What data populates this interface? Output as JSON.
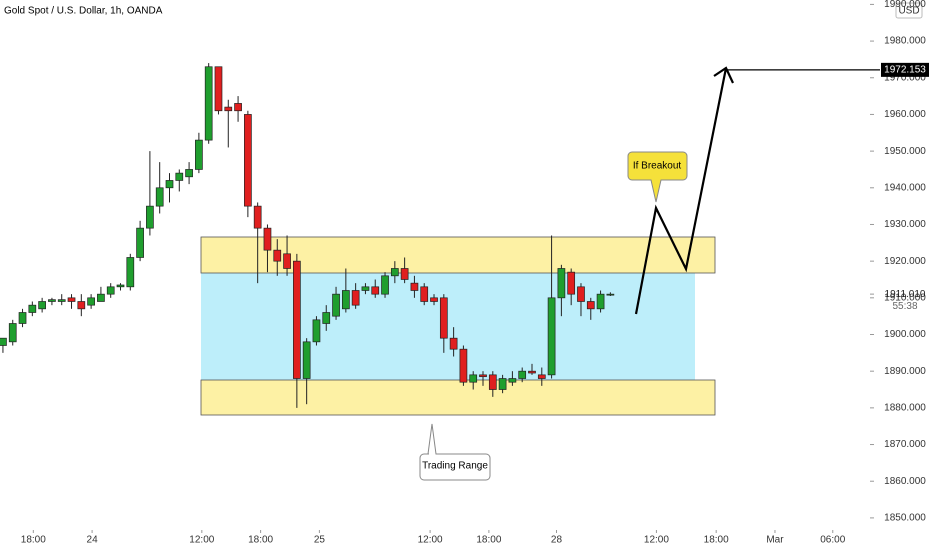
{
  "chart_data": {
    "type": "candlestick",
    "title": "Gold Spot / U.S. Dollar, 1h, OANDA",
    "currency": "USD",
    "up_color": "#1f9e2e",
    "down_color": "#e01f1f",
    "open": [
      1897,
      1898,
      1903,
      1906,
      1907,
      1909,
      1909,
      1910,
      1909,
      1908,
      1909,
      1911,
      1913,
      1913,
      1921,
      1929,
      1935,
      1940,
      1942,
      1943,
      1945,
      1953,
      1973,
      1962,
      1963,
      1960,
      1935,
      1929,
      1923,
      1922,
      1920,
      1888,
      1898,
      1903,
      1905,
      1907,
      1912,
      1912,
      1913,
      1911,
      1916,
      1918,
      1914,
      1913,
      1910,
      1910,
      1899,
      1896,
      1887,
      1889,
      1889,
      1885,
      1887,
      1888,
      1890,
      1889,
      1889,
      1910,
      1917,
      1913,
      1909,
      1907,
      1911
    ],
    "high": [
      1899,
      1904,
      1907,
      1909,
      1910,
      1910,
      1911,
      1911,
      1911,
      1911,
      1913,
      1914,
      1914,
      1922,
      1931,
      1950,
      1947,
      1944,
      1945,
      1947,
      1955,
      1974,
      1973,
      1964,
      1965,
      1961,
      1936,
      1930,
      1926,
      1927,
      1922,
      1899,
      1905,
      1908,
      1913,
      1918,
      1914,
      1914,
      1915,
      1917,
      1920,
      1921,
      1916,
      1914,
      1911,
      1911,
      1902,
      1897,
      1890,
      1890,
      1890,
      1889,
      1890,
      1891,
      1892,
      1891,
      1927,
      1919,
      1918,
      1914,
      1910,
      1912,
      1911.5
    ],
    "low": [
      1895,
      1897,
      1902,
      1905,
      1906,
      1908,
      1908,
      1907,
      1905,
      1907,
      1909,
      1910,
      1912,
      1912,
      1920,
      1927,
      1933,
      1936,
      1939,
      1941,
      1944,
      1952,
      1960,
      1951,
      1958,
      1932,
      1914,
      1917,
      1916,
      1916,
      1880,
      1881,
      1897,
      1901,
      1904,
      1906,
      1907,
      1911,
      1910,
      1910,
      1914,
      1914,
      1910,
      1908,
      1908,
      1895,
      1894,
      1886,
      1885,
      1886,
      1883,
      1884,
      1886,
      1887,
      1889,
      1886,
      1888,
      1905,
      1908,
      1905,
      1904,
      1906,
      1910.5
    ],
    "close": [
      1899,
      1903,
      1906,
      1908,
      1909,
      1909.5,
      1909.5,
      1909,
      1907,
      1910,
      1911,
      1913,
      1913.5,
      1921,
      1929,
      1935,
      1940,
      1942,
      1944,
      1945,
      1953,
      1973,
      1961,
      1961,
      1961,
      1935,
      1929,
      1923,
      1920,
      1918,
      1888,
      1898,
      1904,
      1906,
      1911,
      1912,
      1908,
      1913,
      1911,
      1916,
      1918,
      1915,
      1912,
      1909,
      1909,
      1899,
      1896,
      1887,
      1889,
      1888.5,
      1885,
      1888,
      1888,
      1890,
      1889.5,
      1888,
      1910,
      1918,
      1911,
      1909,
      1907,
      1911,
      1911
    ],
    "ylim": [
      1991.2,
      1846.7
    ],
    "yticks": [
      {
        "value": 1850,
        "label": "1850.000"
      },
      {
        "value": 1860,
        "label": "1860.000"
      },
      {
        "value": 1870,
        "label": "1870.000"
      },
      {
        "value": 1880,
        "label": "1880.000"
      },
      {
        "value": 1890,
        "label": "1890.000"
      },
      {
        "value": 1900,
        "label": "1900.000"
      },
      {
        "value": 1910,
        "label": "1910.000"
      },
      {
        "value": 1920,
        "label": "1920.000"
      },
      {
        "value": 1930,
        "label": "1930.000"
      },
      {
        "value": 1940,
        "label": "1940.000"
      },
      {
        "value": 1950,
        "label": "1950.000"
      },
      {
        "value": 1960,
        "label": "1960.000"
      },
      {
        "value": 1970,
        "label": "1970.000"
      },
      {
        "value": 1980,
        "label": "1980.000"
      },
      {
        "value": 1990,
        "label": "1990.000"
      }
    ],
    "xlim": [
      -0.3,
      88.5
    ],
    "xticks": [
      {
        "value": 3.1,
        "label": "18:00"
      },
      {
        "value": 9.1,
        "label": "24"
      },
      {
        "value": 20.3,
        "label": "12:00"
      },
      {
        "value": 26.3,
        "label": "18:00"
      },
      {
        "value": 32.3,
        "label": "25"
      },
      {
        "value": 43.6,
        "label": "12:00"
      },
      {
        "value": 49.6,
        "label": "18:00"
      },
      {
        "value": 56.5,
        "label": "28"
      },
      {
        "value": 66.7,
        "label": "12:00"
      },
      {
        "value": 72.8,
        "label": "18:00"
      },
      {
        "value": 78.8,
        "label": "Mar"
      },
      {
        "value": 84.7,
        "label": "06:00"
      }
    ],
    "target": {
      "value": 1972.153,
      "label": "1972.153"
    },
    "last_price": {
      "value": 1911.01,
      "label": "1911.010"
    },
    "countdown": "55:38",
    "annotations": [
      "If Breakout",
      "Trading Range"
    ]
  }
}
